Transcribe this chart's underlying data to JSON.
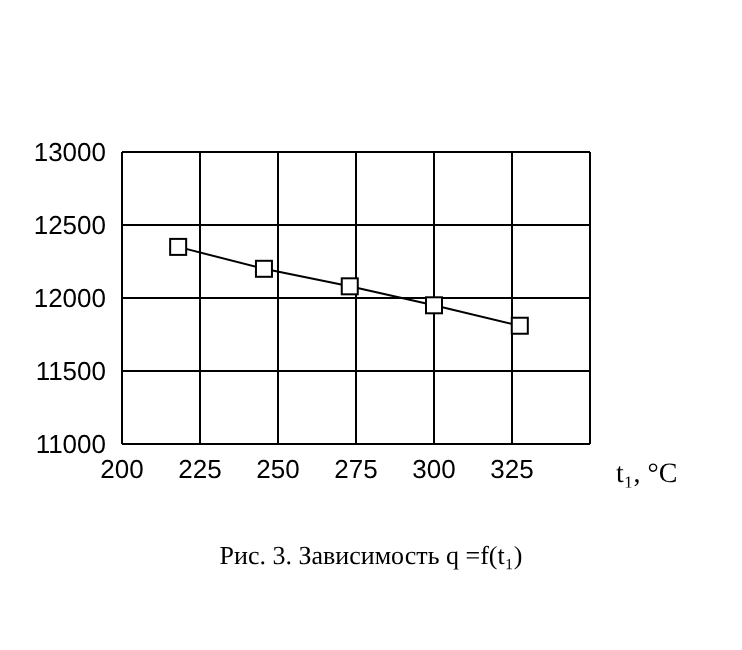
{
  "chart_data": {
    "type": "line",
    "x": [
      218,
      245.5,
      273,
      300,
      327.5
    ],
    "series": [
      {
        "color": "#000000",
        "values": [
          12350,
          12200,
          12080,
          11950,
          11810
        ]
      }
    ],
    "xlim": [
      200,
      350
    ],
    "xticks": [
      200,
      225,
      250,
      275,
      300,
      325
    ],
    "ylim": [
      11000,
      13000
    ],
    "yticks": [
      11000,
      11500,
      12000,
      12500,
      13000
    ],
    "xlabel": "t₁, °C",
    "annotations": [
      "Рис. 3. Зависимость q =f(t₁)"
    ],
    "grid": true,
    "marker": "square",
    "line_style": "solid"
  }
}
